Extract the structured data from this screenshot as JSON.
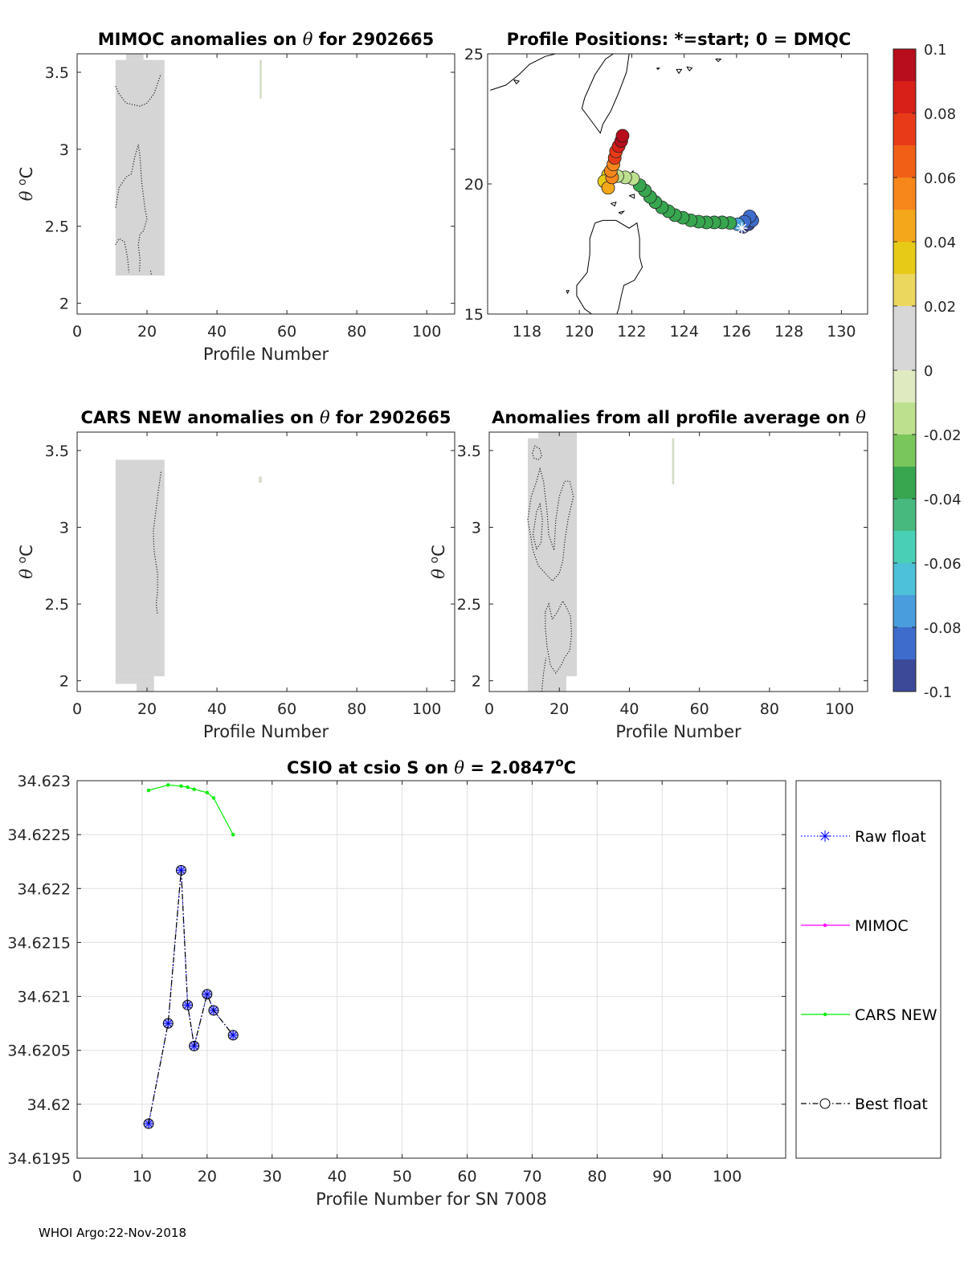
{
  "footer": "WHOI Argo:22-Nov-2018",
  "colors": {
    "grey_fill": "#d5d5d5",
    "raw_float": "#0000ff",
    "mimoc": "#ff00ff",
    "cars_new": "#00ee00",
    "best_float": "#000000",
    "marker_fill": "#8a8aff"
  },
  "chart_data": [
    {
      "id": "mimoc",
      "type": "heatmap",
      "title": "MIMOC anomalies on θ  for 2902665",
      "xlabel": "Profile Number",
      "ylabel": "θ °C",
      "xlim": [
        0,
        108
      ],
      "ylim": [
        1.93,
        3.62
      ],
      "xticks": [
        0,
        20,
        40,
        60,
        80,
        100
      ],
      "yticks": [
        2,
        2.5,
        3,
        3.5
      ],
      "ytick_labels": [
        "2",
        "2.5",
        "3",
        "3.5"
      ],
      "blocks": [
        {
          "x0": 11,
          "x1": 25,
          "y0": 2.18,
          "y1": 3.58
        },
        {
          "x0": 14,
          "x1": 19,
          "y0": 3.58,
          "y1": 3.62
        },
        {
          "x0": 52.2,
          "x1": 52.8,
          "y0": 3.33,
          "y1": 3.58
        }
      ],
      "contours": [
        [
          [
            11,
            3.41
          ],
          [
            12,
            3.36
          ],
          [
            14,
            3.3
          ],
          [
            16,
            3.29
          ],
          [
            18,
            3.28
          ],
          [
            20,
            3.3
          ],
          [
            22,
            3.36
          ],
          [
            24,
            3.49
          ]
        ],
        [
          [
            11,
            2.62
          ],
          [
            12,
            2.75
          ],
          [
            14,
            2.82
          ],
          [
            15.5,
            2.84
          ],
          [
            16.5,
            2.95
          ],
          [
            17.5,
            3.03
          ],
          [
            18,
            2.95
          ],
          [
            18.5,
            2.78
          ],
          [
            19.5,
            2.6
          ],
          [
            20,
            2.55
          ],
          [
            19,
            2.47
          ],
          [
            18,
            2.45
          ],
          [
            17.5,
            2.38
          ],
          [
            18,
            2.28
          ],
          [
            17.8,
            2.2
          ]
        ],
        [
          [
            11,
            2.38
          ],
          [
            12,
            2.42
          ],
          [
            13.5,
            2.4
          ],
          [
            14,
            2.35
          ],
          [
            14.5,
            2.28
          ],
          [
            14.8,
            2.2
          ]
        ],
        [
          [
            21,
            2.21
          ],
          [
            21.3,
            2.18
          ]
        ]
      ]
    },
    {
      "id": "positions",
      "type": "scatter",
      "title": "Profile Positions: *=start; 0 = DMQC",
      "xlim": [
        116.5,
        131
      ],
      "ylim": [
        15,
        25
      ],
      "xticks": [
        118,
        120,
        122,
        124,
        126,
        128,
        130
      ],
      "yticks": [
        15,
        20,
        25
      ],
      "points": [
        {
          "lon": 126.25,
          "lat": 18.35,
          "c": -0.1
        },
        {
          "lon": 126.45,
          "lat": 18.45,
          "c": -0.095
        },
        {
          "lon": 126.6,
          "lat": 18.6,
          "c": -0.09
        },
        {
          "lon": 126.5,
          "lat": 18.75,
          "c": -0.09
        },
        {
          "lon": 126.3,
          "lat": 18.55,
          "c": -0.085
        },
        {
          "lon": 126.05,
          "lat": 18.45,
          "c": -0.08
        },
        {
          "lon": 125.75,
          "lat": 18.5,
          "c": -0.035
        },
        {
          "lon": 125.45,
          "lat": 18.52,
          "c": -0.035
        },
        {
          "lon": 125.15,
          "lat": 18.52,
          "c": -0.035
        },
        {
          "lon": 124.85,
          "lat": 18.52,
          "c": -0.035
        },
        {
          "lon": 124.55,
          "lat": 18.55,
          "c": -0.035
        },
        {
          "lon": 124.25,
          "lat": 18.6,
          "c": -0.035
        },
        {
          "lon": 123.95,
          "lat": 18.7,
          "c": -0.035
        },
        {
          "lon": 123.65,
          "lat": 18.8,
          "c": -0.035
        },
        {
          "lon": 123.4,
          "lat": 18.95,
          "c": -0.035
        },
        {
          "lon": 123.15,
          "lat": 19.1,
          "c": -0.035
        },
        {
          "lon": 122.9,
          "lat": 19.3,
          "c": -0.035
        },
        {
          "lon": 122.7,
          "lat": 19.5,
          "c": -0.035
        },
        {
          "lon": 122.5,
          "lat": 19.75,
          "c": -0.035
        },
        {
          "lon": 122.3,
          "lat": 19.95,
          "c": -0.035
        },
        {
          "lon": 122.05,
          "lat": 20.2,
          "c": -0.015
        },
        {
          "lon": 121.75,
          "lat": 20.25,
          "c": -0.015
        },
        {
          "lon": 121.45,
          "lat": 20.3,
          "c": -0.015
        },
        {
          "lon": 121.1,
          "lat": 20.35,
          "c": 0.03
        },
        {
          "lon": 120.95,
          "lat": 20.1,
          "c": 0.035
        },
        {
          "lon": 121.1,
          "lat": 19.85,
          "c": 0.04
        },
        {
          "lon": 121.25,
          "lat": 20.25,
          "c": 0.05
        },
        {
          "lon": 121.2,
          "lat": 20.5,
          "c": 0.055
        },
        {
          "lon": 121.3,
          "lat": 20.75,
          "c": 0.06
        },
        {
          "lon": 121.35,
          "lat": 21.0,
          "c": 0.07
        },
        {
          "lon": 121.4,
          "lat": 21.25,
          "c": 0.075
        },
        {
          "lon": 121.5,
          "lat": 21.45,
          "c": 0.085
        },
        {
          "lon": 121.6,
          "lat": 21.65,
          "c": 0.09
        },
        {
          "lon": 121.65,
          "lat": 21.85,
          "c": 0.095
        }
      ],
      "start": {
        "lon": 126.2,
        "lat": 18.3
      }
    },
    {
      "id": "cars",
      "type": "heatmap",
      "title": "CARS NEW anomalies on θ for 2902665",
      "xlabel": "Profile Number",
      "ylabel": "θ °C",
      "xlim": [
        0,
        108
      ],
      "ylim": [
        1.93,
        3.62
      ],
      "xticks": [
        0,
        20,
        40,
        60,
        80,
        100
      ],
      "yticks": [
        2,
        2.5,
        3,
        3.5
      ],
      "ytick_labels": [
        "2",
        "2.5",
        "3",
        "3.5"
      ],
      "blocks": [
        {
          "x0": 11,
          "x1": 25,
          "y0": 2.03,
          "y1": 3.44
        },
        {
          "x0": 11,
          "x1": 22,
          "y0": 1.98,
          "y1": 2.03
        },
        {
          "x0": 17,
          "x1": 22,
          "y0": 1.93,
          "y1": 1.98
        },
        {
          "x0": 52,
          "x1": 52.8,
          "y0": 3.29,
          "y1": 3.33
        }
      ],
      "contours": [
        [
          [
            24,
            3.36
          ],
          [
            23.3,
            3.25
          ],
          [
            22.5,
            3.1
          ],
          [
            21.8,
            2.98
          ],
          [
            22,
            2.85
          ],
          [
            23,
            2.7
          ],
          [
            23,
            2.58
          ],
          [
            22.6,
            2.5
          ],
          [
            23,
            2.43
          ]
        ]
      ]
    },
    {
      "id": "anom",
      "type": "heatmap",
      "title": "Anomalies from all profile average on θ",
      "xlabel": "Profile Number",
      "ylabel": "θ °C",
      "xlim": [
        0,
        108
      ],
      "ylim": [
        1.93,
        3.62
      ],
      "xticks": [
        0,
        20,
        40,
        60,
        80,
        100
      ],
      "yticks": [
        2,
        2.5,
        3,
        3.5
      ],
      "ytick_labels": [
        "2",
        "2.5",
        "3",
        "3.5"
      ],
      "blocks": [
        {
          "x0": 11,
          "x1": 25,
          "y0": 2.03,
          "y1": 3.58
        },
        {
          "x0": 14,
          "x1": 25,
          "y0": 3.58,
          "y1": 3.62
        },
        {
          "x0": 11,
          "x1": 22,
          "y0": 1.93,
          "y1": 2.03
        },
        {
          "x0": 52.2,
          "x1": 52.8,
          "y0": 3.28,
          "y1": 3.58
        }
      ],
      "contours": [
        [
          [
            12.3,
            3.48
          ],
          [
            13,
            3.53
          ],
          [
            14.5,
            3.51
          ],
          [
            15,
            3.46
          ],
          [
            14,
            3.44
          ],
          [
            12.8,
            3.45
          ],
          [
            12.3,
            3.48
          ]
        ],
        [
          [
            11,
            3.05
          ],
          [
            12,
            3.2
          ],
          [
            13.5,
            3.3
          ],
          [
            14.5,
            3.38
          ],
          [
            15.5,
            3.3
          ],
          [
            16.5,
            3.1
          ],
          [
            17,
            2.95
          ],
          [
            18.5,
            2.85
          ],
          [
            19,
            3.05
          ],
          [
            20,
            3.2
          ],
          [
            21.5,
            3.3
          ],
          [
            23,
            3.3
          ],
          [
            24,
            3.2
          ],
          [
            22.5,
            3.05
          ],
          [
            21.5,
            2.9
          ],
          [
            21,
            2.78
          ],
          [
            20,
            2.7
          ],
          [
            18,
            2.65
          ],
          [
            16,
            2.7
          ],
          [
            14,
            2.75
          ],
          [
            12.5,
            2.85
          ],
          [
            11,
            3.05
          ]
        ],
        [
          [
            12.5,
            2.95
          ],
          [
            13.5,
            3.1
          ],
          [
            14.5,
            3.15
          ],
          [
            15.2,
            3.05
          ],
          [
            14.8,
            2.9
          ],
          [
            13.5,
            2.86
          ],
          [
            12.5,
            2.95
          ]
        ],
        [
          [
            16,
            2.45
          ],
          [
            17,
            2.5
          ],
          [
            18,
            2.4
          ],
          [
            19.5,
            2.45
          ],
          [
            21,
            2.52
          ],
          [
            22,
            2.48
          ],
          [
            23.2,
            2.42
          ],
          [
            23.5,
            2.3
          ],
          [
            23,
            2.2
          ],
          [
            21.5,
            2.15
          ],
          [
            20.5,
            2.1
          ],
          [
            19,
            2.05
          ],
          [
            17.5,
            2.1
          ],
          [
            16.5,
            2.22
          ],
          [
            16,
            2.35
          ],
          [
            16,
            2.45
          ]
        ],
        [
          [
            15,
            1.93
          ],
          [
            15.5,
            2.05
          ],
          [
            16.2,
            2.15
          ]
        ]
      ]
    },
    {
      "id": "csio",
      "type": "line",
      "title": "CSIO at csio S on θ = 2.0847°C",
      "title_main": "CSIO at csio S on θ = 2.0847",
      "title_unit": "o",
      "title_tail": "C",
      "xlabel": "Profile Number for SN 7008",
      "xlim": [
        0,
        109
      ],
      "ylim": [
        34.6195,
        34.623
      ],
      "xticks": [
        0,
        10,
        20,
        30,
        40,
        50,
        60,
        70,
        80,
        90,
        100
      ],
      "yticks": [
        34.6195,
        34.62,
        34.6205,
        34.621,
        34.6215,
        34.622,
        34.6225,
        34.623
      ],
      "ytick_labels": [
        "34.6195",
        "34.62",
        "34.6205",
        "34.621",
        "34.6215",
        "34.622",
        "34.6225",
        "34.623"
      ],
      "series": [
        {
          "name": "Raw float",
          "style": "dotted",
          "marker": "star",
          "color": "#0000ff",
          "x": [
            11,
            14,
            16,
            17,
            18,
            20,
            21,
            24
          ],
          "y": [
            34.61982,
            34.62075,
            34.62217,
            34.62092,
            34.62054,
            34.62102,
            34.62087,
            34.62064
          ]
        },
        {
          "name": "MIMOC",
          "style": "solid",
          "marker": "dot",
          "color": "#ff00ff",
          "x": [],
          "y": []
        },
        {
          "name": "CARS NEW",
          "style": "solid",
          "marker": "dot",
          "color": "#00ee00",
          "x": [
            11,
            14,
            16,
            17,
            18,
            20,
            21,
            24
          ],
          "y": [
            34.62291,
            34.62296,
            34.62295,
            34.62294,
            34.62292,
            34.62289,
            34.62284,
            34.6225
          ]
        },
        {
          "name": "Best float",
          "style": "dashdot",
          "marker": "circle",
          "color": "#000000",
          "x": [
            11,
            14,
            16,
            17,
            18,
            20,
            21,
            24
          ],
          "y": [
            34.61982,
            34.62075,
            34.62217,
            34.62092,
            34.62054,
            34.62102,
            34.62087,
            34.62064
          ]
        }
      ]
    }
  ],
  "colorbar": {
    "min": -0.1,
    "max": 0.1,
    "ticks": [
      0.1,
      0.08,
      0.06,
      0.04,
      0.02,
      0,
      -0.02,
      -0.04,
      -0.06,
      -0.08,
      -0.1
    ],
    "tick_labels": [
      "0.1",
      "0.08",
      "0.06",
      "0.04",
      "0.02",
      "0",
      "-0.02",
      "-0.04",
      "-0.06",
      "-0.08",
      "-0.1"
    ],
    "stops": [
      "#3a4a99",
      "#3e6ccc",
      "#4a9ddc",
      "#4cc1d8",
      "#49cfb5",
      "#47b97f",
      "#37a64f",
      "#79c65a",
      "#bde08f",
      "#dfeac1",
      "#d7d7d7",
      "#d7d7d7",
      "#ecd75e",
      "#e7ca16",
      "#f3a71a",
      "#f7861b",
      "#f15f17",
      "#e83a18",
      "#d81f18",
      "#b80d1c"
    ]
  }
}
